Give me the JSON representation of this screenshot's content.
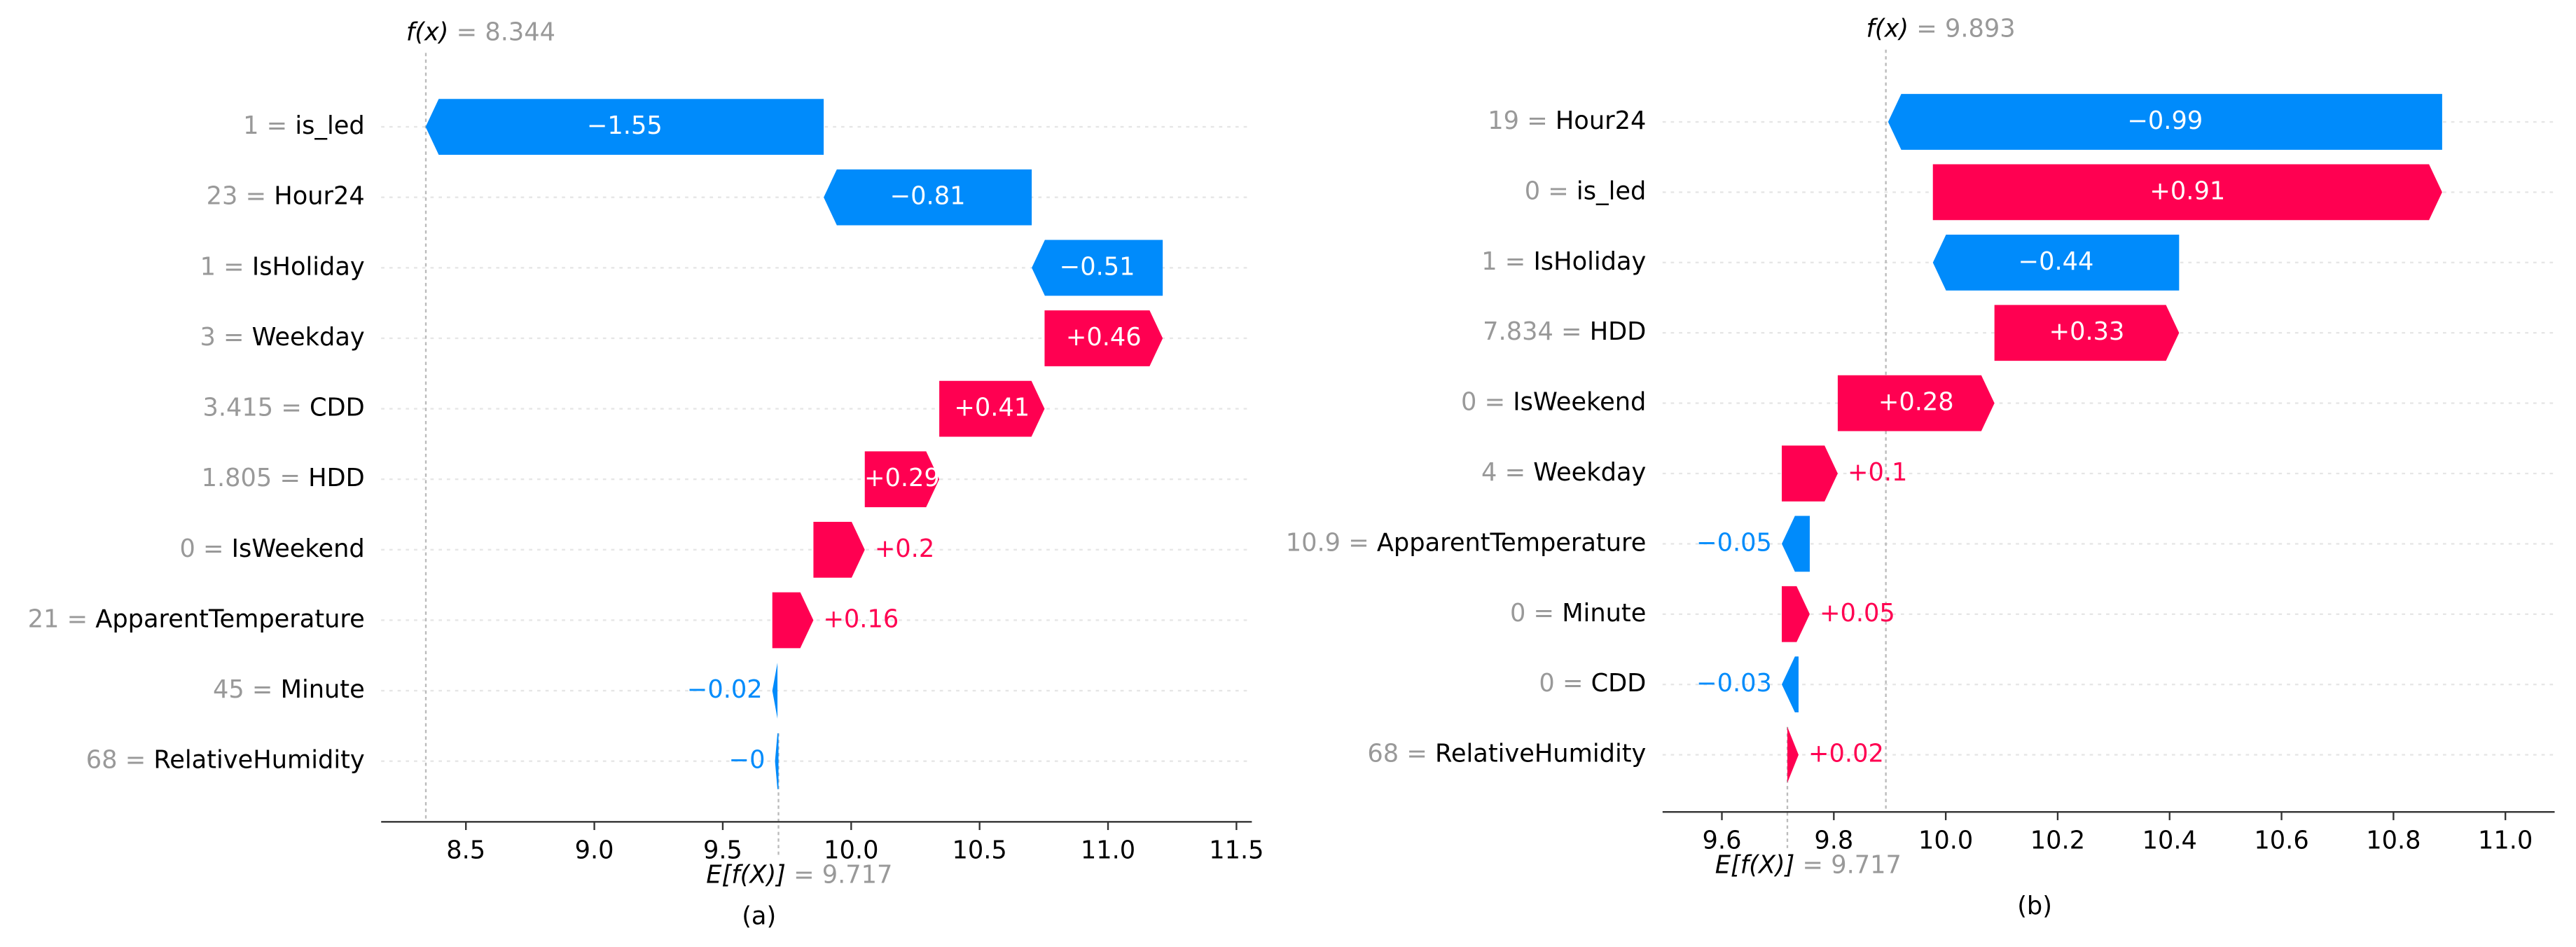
{
  "chart_data": [
    {
      "type": "waterfall",
      "fx_label": "f(x)",
      "fx_separator": " = ",
      "fx": 8.344,
      "base_label": "E[f(X)]",
      "base_separator": " = ",
      "base": 9.717,
      "subplot_label": "(a)",
      "separator": " = ",
      "feature_values": [
        "1",
        "23",
        "1",
        "3",
        "3.415",
        "1.805",
        "0",
        "21",
        "45",
        "68"
      ],
      "features": [
        "is_led",
        "Hour24",
        "IsHoliday",
        "Weekday",
        "CDD",
        "HDD",
        "IsWeekend",
        "ApparentTemperature",
        "Minute",
        "RelativeHumidity"
      ],
      "values": [
        -1.55,
        -0.81,
        -0.51,
        0.46,
        0.41,
        0.29,
        0.2,
        0.16,
        -0.02,
        -0.004
      ],
      "value_labels": [
        "−1.55",
        "−0.81",
        "−0.51",
        "+0.46",
        "+0.41",
        "+0.29",
        "+0.2",
        "+0.16",
        "−0.02",
        "−0"
      ],
      "positive_color": "#ff0051",
      "negative_color": "#008bfb",
      "xlim": [
        8.17,
        11.56
      ],
      "xticks": [
        8.5,
        {
          "value": 9,
          "label": "9.0"
        },
        9.5,
        {
          "value": 10,
          "label": "10.0"
        },
        10.5,
        {
          "value": 11,
          "label": "11.0"
        },
        11.5
      ]
    },
    {
      "type": "waterfall",
      "fx_label": "f(x)",
      "fx_separator": " = ",
      "fx": 9.893,
      "base_label": "E[f(X)]",
      "base_separator": " = ",
      "base": 9.717,
      "subplot_label": "(b)",
      "separator": " = ",
      "feature_values": [
        "19",
        "0",
        "1",
        "7.834",
        "0",
        "4",
        "10.9",
        "0",
        "0",
        "68"
      ],
      "features": [
        "Hour24",
        "is_led",
        "IsHoliday",
        "HDD",
        "IsWeekend",
        "Weekday",
        "ApparentTemperature",
        "Minute",
        "CDD",
        "RelativeHumidity"
      ],
      "values": [
        -0.99,
        0.91,
        -0.44,
        0.33,
        0.28,
        0.1,
        -0.05,
        0.05,
        -0.03,
        0.02
      ],
      "value_labels": [
        "−0.99",
        "+0.91",
        "−0.44",
        "+0.33",
        "+0.28",
        "+0.1",
        "−0.05",
        "+0.05",
        "−0.03",
        "+0.02"
      ],
      "positive_color": "#ff0051",
      "negative_color": "#008bfb",
      "xlim": [
        9.494,
        11.088
      ],
      "xticks": [
        9.6,
        9.8,
        {
          "value": 10,
          "label": "10.0"
        },
        10.2,
        10.4,
        10.6,
        10.8,
        {
          "value": 11,
          "label": "11.0"
        }
      ]
    }
  ]
}
